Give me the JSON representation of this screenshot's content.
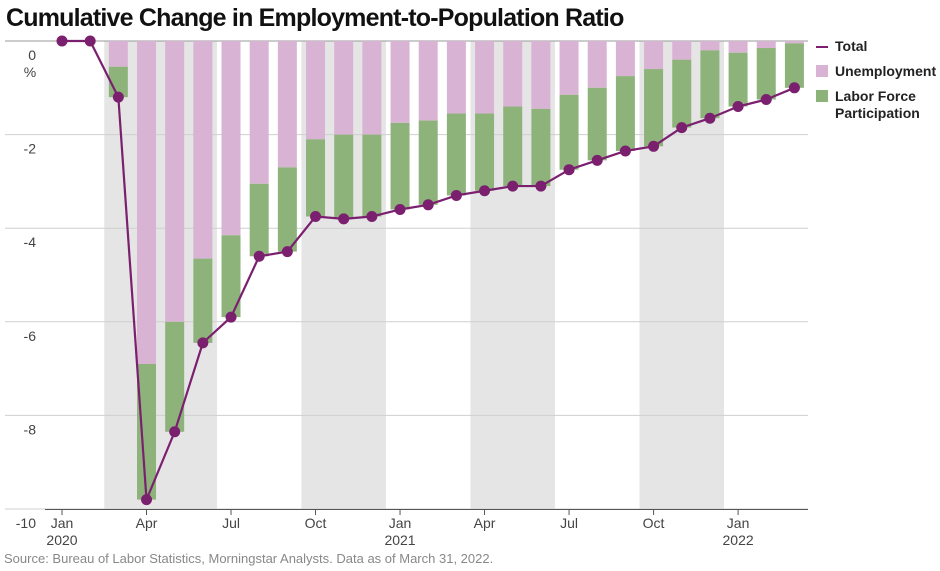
{
  "chart_data": {
    "type": "combo",
    "title": "Cumulative Change in Employment-to-Population Ratio",
    "y_unit": "%",
    "source": "Source: Bureau of Labor Statistics, Morningstar Analysts. Data as of March 31, 2022.",
    "categories": [
      "Jan",
      null,
      null,
      "Apr",
      null,
      null,
      "Jul",
      null,
      null,
      "Oct",
      null,
      null,
      "Jan",
      null,
      null,
      "Apr",
      null,
      null,
      "Jul",
      null,
      null,
      "Oct",
      null,
      null,
      "Jan",
      null,
      null
    ],
    "x_year_labels": [
      "2020",
      null,
      null,
      null,
      null,
      null,
      null,
      null,
      null,
      null,
      null,
      null,
      "2021",
      null,
      null,
      null,
      null,
      null,
      null,
      null,
      null,
      null,
      null,
      null,
      "2022",
      null,
      null
    ],
    "series": [
      {
        "name": "Total",
        "type": "line",
        "color": "#7b1f6f",
        "values": [
          0,
          0,
          -1.2,
          -9.8,
          -8.35,
          -6.45,
          -5.9,
          -4.6,
          -4.5,
          -3.75,
          -3.8,
          -3.75,
          -3.6,
          -3.5,
          -3.3,
          -3.2,
          -3.1,
          -3.1,
          -2.75,
          -2.55,
          -2.35,
          -2.25,
          -1.85,
          -1.65,
          -1.4,
          -1.25,
          -1.0
        ]
      },
      {
        "name": "Unemployment",
        "type": "bar",
        "color": "#d9b3d3",
        "values": [
          0,
          0,
          -0.55,
          -6.9,
          -6.0,
          -4.65,
          -4.15,
          -3.05,
          -2.7,
          -2.1,
          -2.0,
          -2.0,
          -1.75,
          -1.7,
          -1.55,
          -1.55,
          -1.4,
          -1.45,
          -1.15,
          -1.0,
          -0.75,
          -0.6,
          -0.4,
          -0.2,
          -0.25,
          -0.15,
          -0.05
        ]
      },
      {
        "name": "Labor Force Participation",
        "type": "bar",
        "color": "#8db37b",
        "values": [
          0,
          0,
          -0.65,
          -2.9,
          -2.35,
          -1.8,
          -1.75,
          -1.55,
          -1.8,
          -1.65,
          -1.8,
          -1.75,
          -1.85,
          -1.8,
          -1.75,
          -1.65,
          -1.7,
          -1.65,
          -1.6,
          -1.55,
          -1.6,
          -1.65,
          -1.45,
          -1.45,
          -1.15,
          -1.1,
          -0.95
        ]
      }
    ],
    "ylim": [
      -10,
      0
    ],
    "yticks": [
      0,
      -2,
      -4,
      -6,
      -8,
      -10
    ],
    "grid": true
  }
}
